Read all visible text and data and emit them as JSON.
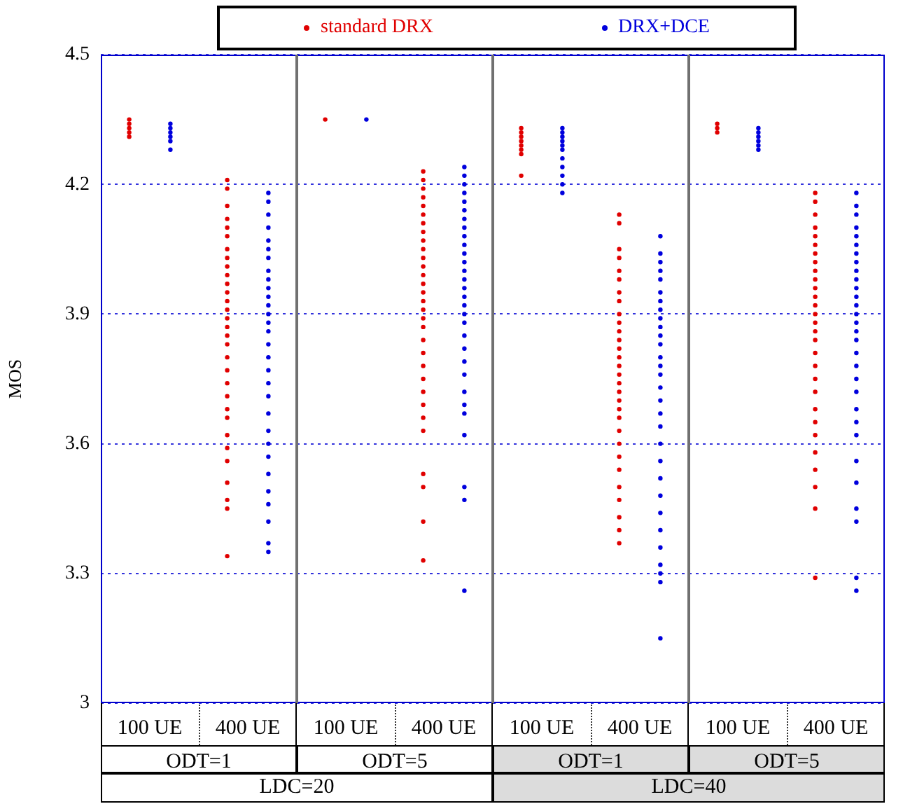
{
  "chart_data": [
    {
      "type": "scatter",
      "ylabel": "MOS",
      "marker": "circle",
      "grid": "y",
      "legend": "top",
      "categories": [
        "100 UE",
        "400 UE"
      ],
      "ylim": [
        3,
        4.5
      ],
      "yticks": [
        3,
        3.3,
        3.6,
        3.9,
        4.2,
        4.5
      ],
      "series": [
        {
          "name": "standard DRX",
          "color": "#e00000",
          "x": [
            "100 UE",
            "100 UE",
            "100 UE",
            "100 UE",
            "100 UE",
            "400 UE",
            "400 UE",
            "400 UE",
            "400 UE",
            "400 UE",
            "400 UE",
            "400 UE",
            "400 UE",
            "400 UE",
            "400 UE",
            "400 UE",
            "400 UE",
            "400 UE",
            "400 UE",
            "400 UE",
            "400 UE",
            "400 UE",
            "400 UE",
            "400 UE",
            "400 UE",
            "400 UE",
            "400 UE",
            "400 UE",
            "400 UE",
            "400 UE",
            "400 UE",
            "400 UE",
            "400 UE",
            "400 UE",
            "400 UE",
            "400 UE"
          ],
          "values": [
            4.35,
            4.34,
            4.33,
            4.32,
            4.31,
            4.21,
            4.19,
            4.15,
            4.12,
            4.1,
            4.08,
            4.05,
            4.03,
            4.01,
            3.99,
            3.97,
            3.95,
            3.93,
            3.91,
            3.89,
            3.87,
            3.85,
            3.83,
            3.8,
            3.77,
            3.74,
            3.71,
            3.68,
            3.66,
            3.62,
            3.59,
            3.56,
            3.51,
            3.47,
            3.45,
            3.34
          ]
        },
        {
          "name": "DRX+DCE",
          "color": "#0000dd",
          "x": [
            "100 UE",
            "100 UE",
            "100 UE",
            "100 UE",
            "100 UE",
            "100 UE",
            "400 UE",
            "400 UE",
            "400 UE",
            "400 UE",
            "400 UE",
            "400 UE",
            "400 UE",
            "400 UE",
            "400 UE",
            "400 UE",
            "400 UE",
            "400 UE",
            "400 UE",
            "400 UE",
            "400 UE",
            "400 UE",
            "400 UE",
            "400 UE",
            "400 UE",
            "400 UE",
            "400 UE",
            "400 UE",
            "400 UE",
            "400 UE",
            "400 UE",
            "400 UE",
            "400 UE",
            "400 UE",
            "400 UE",
            "400 UE"
          ],
          "values": [
            4.34,
            4.33,
            4.32,
            4.31,
            4.3,
            4.28,
            4.18,
            4.16,
            4.13,
            4.1,
            4.07,
            4.05,
            4.03,
            4.0,
            3.98,
            3.96,
            3.94,
            3.92,
            3.9,
            3.88,
            3.86,
            3.83,
            3.8,
            3.77,
            3.74,
            3.71,
            3.67,
            3.63,
            3.6,
            3.57,
            3.53,
            3.49,
            3.46,
            3.42,
            3.37,
            3.35
          ]
        }
      ],
      "annotations": [
        "ODT=1",
        "LDC=20"
      ]
    },
    {
      "type": "scatter",
      "marker": "circle",
      "grid": "y",
      "tick_labels": "x",
      "categories": [
        "100 UE",
        "400 UE"
      ],
      "ylim": [
        3,
        4.5
      ],
      "yticks": [
        3,
        3.3,
        3.6,
        3.9,
        4.2,
        4.5
      ],
      "series": [
        {
          "color": "#e00000",
          "x": [
            "100 UE",
            "400 UE",
            "400 UE",
            "400 UE",
            "400 UE",
            "400 UE",
            "400 UE",
            "400 UE",
            "400 UE",
            "400 UE",
            "400 UE",
            "400 UE",
            "400 UE",
            "400 UE",
            "400 UE",
            "400 UE",
            "400 UE",
            "400 UE",
            "400 UE",
            "400 UE",
            "400 UE",
            "400 UE",
            "400 UE",
            "400 UE",
            "400 UE",
            "400 UE",
            "400 UE",
            "400 UE",
            "400 UE",
            "400 UE",
            "400 UE",
            "400 UE"
          ],
          "values": [
            4.35,
            4.23,
            4.21,
            4.19,
            4.17,
            4.15,
            4.13,
            4.11,
            4.09,
            4.07,
            4.05,
            4.03,
            4.01,
            3.99,
            3.97,
            3.95,
            3.93,
            3.91,
            3.89,
            3.87,
            3.84,
            3.81,
            3.78,
            3.75,
            3.72,
            3.69,
            3.66,
            3.63,
            3.53,
            3.5,
            3.42,
            3.33
          ]
        },
        {
          "color": "#0000dd",
          "x": [
            "100 UE",
            "400 UE",
            "400 UE",
            "400 UE",
            "400 UE",
            "400 UE",
            "400 UE",
            "400 UE",
            "400 UE",
            "400 UE",
            "400 UE",
            "400 UE",
            "400 UE",
            "400 UE",
            "400 UE",
            "400 UE",
            "400 UE",
            "400 UE",
            "400 UE",
            "400 UE",
            "400 UE",
            "400 UE",
            "400 UE",
            "400 UE",
            "400 UE",
            "400 UE",
            "400 UE",
            "400 UE",
            "400 UE",
            "400 UE",
            "400 UE"
          ],
          "values": [
            4.35,
            4.24,
            4.22,
            4.2,
            4.18,
            4.16,
            4.14,
            4.12,
            4.1,
            4.08,
            4.06,
            4.04,
            4.02,
            4.0,
            3.98,
            3.96,
            3.94,
            3.92,
            3.9,
            3.88,
            3.85,
            3.82,
            3.79,
            3.76,
            3.72,
            3.69,
            3.67,
            3.62,
            3.5,
            3.47,
            3.26
          ]
        }
      ],
      "annotations": [
        "ODT=5"
      ]
    },
    {
      "type": "scatter",
      "marker": "circle",
      "grid": "y",
      "tick_labels": "x",
      "categories": [
        "100 UE",
        "400 UE"
      ],
      "ylim": [
        3,
        4.5
      ],
      "yticks": [
        3,
        3.3,
        3.6,
        3.9,
        4.2,
        4.5
      ],
      "series": [
        {
          "color": "#e00000",
          "x": [
            "100 UE",
            "100 UE",
            "100 UE",
            "100 UE",
            "100 UE",
            "100 UE",
            "100 UE",
            "100 UE",
            "400 UE",
            "400 UE",
            "400 UE",
            "400 UE",
            "400 UE",
            "400 UE",
            "400 UE",
            "400 UE",
            "400 UE",
            "400 UE",
            "400 UE",
            "400 UE",
            "400 UE",
            "400 UE",
            "400 UE",
            "400 UE",
            "400 UE",
            "400 UE",
            "400 UE",
            "400 UE",
            "400 UE",
            "400 UE",
            "400 UE",
            "400 UE",
            "400 UE",
            "400 UE",
            "400 UE",
            "400 UE",
            "400 UE",
            "400 UE"
          ],
          "values": [
            4.33,
            4.32,
            4.31,
            4.3,
            4.29,
            4.28,
            4.27,
            4.22,
            4.13,
            4.11,
            4.05,
            4.03,
            4.0,
            3.98,
            3.95,
            3.93,
            3.9,
            3.88,
            3.86,
            3.84,
            3.82,
            3.8,
            3.78,
            3.76,
            3.74,
            3.72,
            3.7,
            3.68,
            3.66,
            3.63,
            3.6,
            3.57,
            3.54,
            3.5,
            3.47,
            3.43,
            3.4,
            3.37
          ]
        },
        {
          "color": "#0000dd",
          "x": [
            "100 UE",
            "100 UE",
            "100 UE",
            "100 UE",
            "100 UE",
            "100 UE",
            "100 UE",
            "100 UE",
            "100 UE",
            "100 UE",
            "100 UE",
            "400 UE",
            "400 UE",
            "400 UE",
            "400 UE",
            "400 UE",
            "400 UE",
            "400 UE",
            "400 UE",
            "400 UE",
            "400 UE",
            "400 UE",
            "400 UE",
            "400 UE",
            "400 UE",
            "400 UE",
            "400 UE",
            "400 UE",
            "400 UE",
            "400 UE",
            "400 UE",
            "400 UE",
            "400 UE",
            "400 UE",
            "400 UE",
            "400 UE",
            "400 UE",
            "400 UE",
            "400 UE",
            "400 UE",
            "400 UE"
          ],
          "values": [
            4.33,
            4.32,
            4.31,
            4.3,
            4.29,
            4.28,
            4.26,
            4.24,
            4.22,
            4.2,
            4.18,
            4.08,
            4.04,
            4.02,
            4.0,
            3.98,
            3.95,
            3.93,
            3.91,
            3.89,
            3.87,
            3.85,
            3.83,
            3.8,
            3.78,
            3.76,
            3.73,
            3.7,
            3.67,
            3.64,
            3.6,
            3.56,
            3.52,
            3.48,
            3.44,
            3.4,
            3.36,
            3.32,
            3.3,
            3.28,
            3.15
          ]
        }
      ],
      "annotations": [
        "ODT=1",
        "LDC=40"
      ]
    },
    {
      "type": "scatter",
      "marker": "circle",
      "grid": "y",
      "tick_labels": "x",
      "categories": [
        "100 UE",
        "400 UE"
      ],
      "ylim": [
        3,
        4.5
      ],
      "yticks": [
        3,
        3.3,
        3.6,
        3.9,
        4.2,
        4.5
      ],
      "series": [
        {
          "color": "#e00000",
          "x": [
            "100 UE",
            "100 UE",
            "100 UE",
            "400 UE",
            "400 UE",
            "400 UE",
            "400 UE",
            "400 UE",
            "400 UE",
            "400 UE",
            "400 UE",
            "400 UE",
            "400 UE",
            "400 UE",
            "400 UE",
            "400 UE",
            "400 UE",
            "400 UE",
            "400 UE",
            "400 UE",
            "400 UE",
            "400 UE",
            "400 UE",
            "400 UE",
            "400 UE",
            "400 UE",
            "400 UE",
            "400 UE",
            "400 UE",
            "400 UE",
            "400 UE",
            "400 UE"
          ],
          "values": [
            4.34,
            4.33,
            4.32,
            4.18,
            4.16,
            4.13,
            4.1,
            4.08,
            4.06,
            4.04,
            4.02,
            4.0,
            3.98,
            3.96,
            3.94,
            3.92,
            3.9,
            3.88,
            3.86,
            3.84,
            3.81,
            3.78,
            3.75,
            3.72,
            3.68,
            3.65,
            3.62,
            3.58,
            3.54,
            3.5,
            3.45,
            3.29
          ]
        },
        {
          "color": "#0000dd",
          "x": [
            "100 UE",
            "100 UE",
            "100 UE",
            "100 UE",
            "100 UE",
            "100 UE",
            "400 UE",
            "400 UE",
            "400 UE",
            "400 UE",
            "400 UE",
            "400 UE",
            "400 UE",
            "400 UE",
            "400 UE",
            "400 UE",
            "400 UE",
            "400 UE",
            "400 UE",
            "400 UE",
            "400 UE",
            "400 UE",
            "400 UE",
            "400 UE",
            "400 UE",
            "400 UE",
            "400 UE",
            "400 UE",
            "400 UE",
            "400 UE",
            "400 UE",
            "400 UE",
            "400 UE",
            "400 UE",
            "400 UE",
            "400 UE"
          ],
          "values": [
            4.33,
            4.32,
            4.31,
            4.3,
            4.29,
            4.28,
            4.18,
            4.15,
            4.13,
            4.1,
            4.08,
            4.06,
            4.04,
            4.02,
            4.0,
            3.98,
            3.96,
            3.94,
            3.92,
            3.9,
            3.88,
            3.86,
            3.84,
            3.81,
            3.78,
            3.75,
            3.72,
            3.68,
            3.65,
            3.62,
            3.56,
            3.51,
            3.45,
            3.42,
            3.29,
            3.26
          ]
        }
      ],
      "annotations": [
        "ODT=5"
      ]
    }
  ]
}
